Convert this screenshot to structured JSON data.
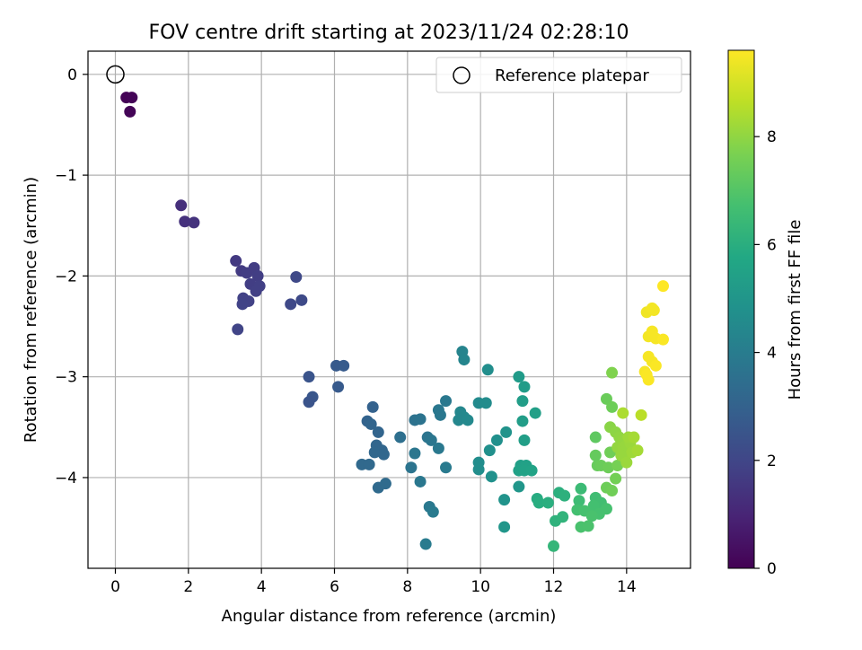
{
  "chart_data": {
    "type": "scatter",
    "title": "FOV centre drift starting at 2023/11/24 02:28:10",
    "xlabel": "Angular distance from reference (arcmin)",
    "ylabel": "Rotation from reference (arcmin)",
    "xlim": [
      -0.75,
      15.75
    ],
    "ylim": [
      -4.9,
      0.23
    ],
    "xticks": [
      0,
      2,
      4,
      6,
      8,
      10,
      12,
      14
    ],
    "yticks": [
      0,
      -1,
      -2,
      -3,
      -4
    ],
    "xtick_labels": [
      "0",
      "2",
      "4",
      "6",
      "8",
      "10",
      "12",
      "14"
    ],
    "ytick_labels": [
      "0",
      "−1",
      "−2",
      "−3",
      "−4"
    ],
    "grid": true,
    "legend": {
      "position": "upper right",
      "entries": [
        {
          "label": "Reference platepar",
          "marker": "open-circle"
        }
      ]
    },
    "reference_point": {
      "x": 0,
      "y": 0
    },
    "colorbar": {
      "label": "Hours from first FF file",
      "colormap": "viridis",
      "range": [
        0,
        9.6
      ],
      "ticks": [
        0,
        2,
        4,
        6,
        8
      ],
      "tick_labels": [
        "0",
        "2",
        "4",
        "6",
        "8"
      ]
    },
    "points": [
      [
        0.3,
        -0.23,
        0.05
      ],
      [
        0.45,
        -0.23,
        0.08
      ],
      [
        0.4,
        -0.37,
        0.1
      ],
      [
        1.8,
        -1.3,
        1.3
      ],
      [
        1.9,
        -1.46,
        1.35
      ],
      [
        2.15,
        -1.47,
        1.4
      ],
      [
        3.3,
        -1.85,
        1.6
      ],
      [
        3.45,
        -1.95,
        1.65
      ],
      [
        3.6,
        -1.97,
        1.7
      ],
      [
        3.8,
        -1.92,
        1.7
      ],
      [
        3.9,
        -2.0,
        1.75
      ],
      [
        3.7,
        -2.08,
        1.75
      ],
      [
        3.95,
        -2.1,
        1.8
      ],
      [
        3.85,
        -2.15,
        1.8
      ],
      [
        3.5,
        -2.22,
        1.85
      ],
      [
        3.65,
        -2.25,
        1.85
      ],
      [
        3.48,
        -2.28,
        1.9
      ],
      [
        3.35,
        -2.53,
        1.95
      ],
      [
        4.95,
        -2.01,
        2.1
      ],
      [
        5.1,
        -2.24,
        2.15
      ],
      [
        4.8,
        -2.28,
        2.1
      ],
      [
        5.3,
        -3.0,
        2.5
      ],
      [
        5.4,
        -3.2,
        2.55
      ],
      [
        5.3,
        -3.25,
        2.5
      ],
      [
        6.05,
        -2.89,
        2.7
      ],
      [
        6.25,
        -2.89,
        2.75
      ],
      [
        6.1,
        -3.1,
        2.7
      ],
      [
        7.05,
        -3.3,
        3.0
      ],
      [
        6.9,
        -3.44,
        3.05
      ],
      [
        7.0,
        -3.47,
        3.1
      ],
      [
        7.2,
        -3.55,
        3.1
      ],
      [
        7.15,
        -3.68,
        3.15
      ],
      [
        7.3,
        -3.73,
        3.15
      ],
      [
        7.1,
        -3.75,
        3.2
      ],
      [
        7.35,
        -3.77,
        3.2
      ],
      [
        6.75,
        -3.87,
        3.25
      ],
      [
        6.95,
        -3.87,
        3.25
      ],
      [
        7.2,
        -4.1,
        3.3
      ],
      [
        7.4,
        -4.06,
        3.35
      ],
      [
        7.8,
        -3.6,
        3.5
      ],
      [
        8.2,
        -3.43,
        3.6
      ],
      [
        8.35,
        -3.42,
        3.65
      ],
      [
        8.55,
        -3.6,
        3.7
      ],
      [
        8.65,
        -3.63,
        3.75
      ],
      [
        8.85,
        -3.33,
        3.8
      ],
      [
        8.9,
        -3.38,
        3.8
      ],
      [
        9.05,
        -3.24,
        3.85
      ],
      [
        8.2,
        -3.76,
        3.75
      ],
      [
        8.85,
        -3.71,
        3.85
      ],
      [
        8.1,
        -3.9,
        3.7
      ],
      [
        9.05,
        -3.9,
        3.9
      ],
      [
        8.35,
        -4.04,
        3.8
      ],
      [
        8.6,
        -4.29,
        3.85
      ],
      [
        8.7,
        -4.34,
        3.9
      ],
      [
        8.5,
        -4.66,
        3.95
      ],
      [
        9.5,
        -2.75,
        4.3
      ],
      [
        9.55,
        -2.83,
        4.35
      ],
      [
        9.45,
        -3.35,
        4.4
      ],
      [
        9.55,
        -3.4,
        4.45
      ],
      [
        9.4,
        -3.43,
        4.4
      ],
      [
        9.65,
        -3.43,
        4.5
      ],
      [
        9.95,
        -3.26,
        4.55
      ],
      [
        10.15,
        -3.26,
        4.6
      ],
      [
        10.2,
        -2.93,
        4.7
      ],
      [
        10.45,
        -3.63,
        4.75
      ],
      [
        10.25,
        -3.73,
        4.75
      ],
      [
        9.95,
        -3.85,
        4.65
      ],
      [
        9.95,
        -3.92,
        4.7
      ],
      [
        10.3,
        -3.99,
        4.8
      ],
      [
        10.7,
        -3.55,
        4.9
      ],
      [
        10.65,
        -4.22,
        4.9
      ],
      [
        11.05,
        -4.09,
        5.0
      ],
      [
        10.65,
        -4.49,
        5.0
      ],
      [
        11.05,
        -3.0,
        5.2
      ],
      [
        11.2,
        -3.1,
        5.25
      ],
      [
        11.15,
        -3.24,
        5.3
      ],
      [
        11.15,
        -3.44,
        5.3
      ],
      [
        11.5,
        -3.36,
        5.4
      ],
      [
        11.2,
        -3.63,
        5.35
      ],
      [
        11.1,
        -3.88,
        5.4
      ],
      [
        11.25,
        -3.88,
        5.45
      ],
      [
        11.05,
        -3.93,
        5.45
      ],
      [
        11.2,
        -3.93,
        5.5
      ],
      [
        11.4,
        -3.93,
        5.55
      ],
      [
        11.55,
        -4.21,
        5.9
      ],
      [
        11.6,
        -4.25,
        5.95
      ],
      [
        11.85,
        -4.25,
        6.0
      ],
      [
        12.15,
        -4.15,
        6.05
      ],
      [
        12.3,
        -4.18,
        6.1
      ],
      [
        12.05,
        -4.43,
        6.15
      ],
      [
        12.25,
        -4.39,
        6.2
      ],
      [
        12.0,
        -4.68,
        6.3
      ],
      [
        12.75,
        -4.11,
        6.5
      ],
      [
        12.7,
        -4.23,
        6.55
      ],
      [
        13.15,
        -4.2,
        6.6
      ],
      [
        13.3,
        -4.25,
        6.65
      ],
      [
        13.1,
        -4.28,
        6.7
      ],
      [
        13.45,
        -4.31,
        6.75
      ],
      [
        13.25,
        -4.36,
        6.75
      ],
      [
        12.65,
        -4.32,
        6.7
      ],
      [
        12.85,
        -4.33,
        6.75
      ],
      [
        13.05,
        -4.38,
        6.8
      ],
      [
        12.75,
        -4.49,
        6.8
      ],
      [
        12.95,
        -4.48,
        6.85
      ],
      [
        13.15,
        -3.6,
        7.2
      ],
      [
        13.45,
        -3.22,
        7.4
      ],
      [
        13.6,
        -3.3,
        7.45
      ],
      [
        13.15,
        -3.78,
        7.3
      ],
      [
        13.2,
        -3.88,
        7.35
      ],
      [
        13.3,
        -3.88,
        7.4
      ],
      [
        13.5,
        -3.9,
        7.45
      ],
      [
        13.55,
        -3.75,
        7.5
      ],
      [
        13.45,
        -4.1,
        7.45
      ],
      [
        13.6,
        -4.13,
        7.5
      ],
      [
        13.7,
        -4.01,
        7.55
      ],
      [
        13.75,
        -3.88,
        7.6
      ],
      [
        13.6,
        -2.96,
        7.75
      ],
      [
        13.55,
        -3.5,
        7.9
      ],
      [
        13.7,
        -3.55,
        7.95
      ],
      [
        13.8,
        -3.6,
        8.0
      ],
      [
        13.9,
        -3.63,
        8.05
      ],
      [
        13.75,
        -3.7,
        8.05
      ],
      [
        13.9,
        -3.7,
        8.1
      ],
      [
        14.0,
        -3.68,
        8.1
      ],
      [
        14.1,
        -3.66,
        8.15
      ],
      [
        13.95,
        -3.8,
        8.15
      ],
      [
        14.15,
        -3.75,
        8.2
      ],
      [
        14.05,
        -3.6,
        8.2
      ],
      [
        13.85,
        -3.78,
        8.1
      ],
      [
        14.0,
        -3.85,
        8.15
      ],
      [
        14.2,
        -3.6,
        8.3
      ],
      [
        14.3,
        -3.73,
        8.3
      ],
      [
        13.9,
        -3.36,
        8.4
      ],
      [
        14.4,
        -3.38,
        8.6
      ],
      [
        14.55,
        -2.36,
        9.4
      ],
      [
        14.7,
        -2.32,
        9.45
      ],
      [
        14.75,
        -2.34,
        9.45
      ],
      [
        14.6,
        -2.6,
        9.45
      ],
      [
        14.7,
        -2.55,
        9.5
      ],
      [
        14.8,
        -2.62,
        9.5
      ],
      [
        15.0,
        -2.63,
        9.55
      ],
      [
        14.6,
        -2.8,
        9.5
      ],
      [
        14.7,
        -2.85,
        9.5
      ],
      [
        14.8,
        -2.89,
        9.55
      ],
      [
        14.5,
        -2.95,
        9.5
      ],
      [
        14.55,
        -2.98,
        9.55
      ],
      [
        14.6,
        -3.03,
        9.55
      ],
      [
        15.0,
        -2.1,
        9.6
      ]
    ]
  }
}
